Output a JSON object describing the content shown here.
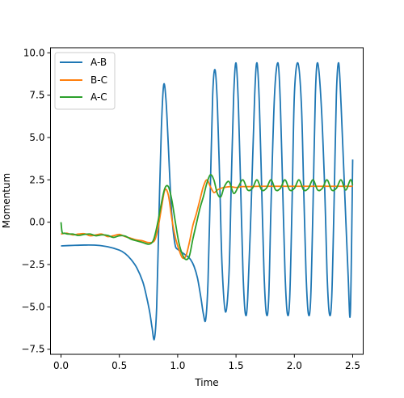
{
  "chart_data": {
    "type": "line",
    "xlabel": "Time",
    "ylabel": "Momentum",
    "xlim": [
      -0.09,
      2.59
    ],
    "ylim": [
      -7.8,
      10.3
    ],
    "xticks": [
      "0.0",
      "0.5",
      "1.0",
      "1.5",
      "2.0",
      "2.5"
    ],
    "xtick_values": [
      0.0,
      0.5,
      1.0,
      1.5,
      2.0,
      2.5
    ],
    "yticks": [
      "10.0",
      "7.5",
      "5.0",
      "2.5",
      "0.0",
      "−2.5",
      "−5.0",
      "−7.5"
    ],
    "ytick_values": [
      10.0,
      7.5,
      5.0,
      2.5,
      0.0,
      -2.5,
      -5.0,
      -7.5
    ],
    "grid": false,
    "legend": "top-left",
    "series": [
      {
        "name": "A-B",
        "color": "#1f77b4",
        "x": [
          0.0,
          0.1,
          0.2,
          0.3,
          0.4,
          0.5,
          0.55,
          0.6,
          0.65,
          0.7,
          0.73,
          0.76,
          0.78,
          0.8,
          0.82,
          0.84,
          0.86,
          0.88,
          0.9,
          0.92,
          0.94,
          0.96,
          0.98,
          1.0,
          1.02,
          1.05,
          1.08,
          1.11,
          1.14,
          1.17,
          1.2,
          1.22,
          1.24,
          1.26,
          1.28,
          1.3,
          1.32,
          1.34,
          1.36,
          1.38,
          1.41,
          1.44,
          1.46,
          1.48,
          1.5,
          1.52,
          1.54,
          1.56,
          1.58,
          1.6,
          1.63,
          1.66,
          1.68,
          1.7,
          1.72,
          1.74,
          1.76,
          1.78,
          1.8,
          1.83,
          1.86,
          1.88,
          1.9,
          1.92,
          1.94,
          1.96,
          1.98,
          2.0,
          2.03,
          2.06,
          2.08,
          2.1,
          2.12,
          2.14,
          2.16,
          2.18,
          2.2,
          2.23,
          2.26,
          2.28,
          2.3,
          2.32,
          2.34,
          2.36,
          2.38,
          2.4,
          2.43,
          2.46,
          2.48,
          2.5
        ],
        "y": [
          -1.4,
          -1.37,
          -1.35,
          -1.36,
          -1.45,
          -1.65,
          -1.85,
          -2.2,
          -2.7,
          -3.5,
          -4.3,
          -5.3,
          -6.2,
          -6.9,
          -5.0,
          0.5,
          5.5,
          8.1,
          7.2,
          4.5,
          1.5,
          -0.4,
          -1.4,
          -1.6,
          -1.7,
          -1.85,
          -2.0,
          -2.2,
          -2.6,
          -3.3,
          -4.5,
          -5.4,
          -5.75,
          -3.5,
          2.0,
          7.5,
          9.0,
          7.0,
          2.5,
          -2.5,
          -5.3,
          -3.0,
          2.5,
          7.5,
          9.4,
          7.0,
          2.0,
          -3.0,
          -5.4,
          -4.5,
          1.0,
          7.5,
          9.4,
          7.0,
          2.0,
          -3.0,
          -5.4,
          -4.5,
          1.0,
          7.5,
          9.4,
          7.0,
          2.0,
          -3.0,
          -5.4,
          -4.5,
          1.0,
          7.5,
          9.4,
          7.0,
          2.0,
          -3.0,
          -5.4,
          -4.5,
          1.0,
          7.5,
          9.4,
          7.0,
          2.0,
          -3.0,
          -5.4,
          -4.5,
          1.0,
          7.5,
          9.4,
          7.0,
          2.0,
          -3.0,
          -5.3,
          3.7
        ]
      },
      {
        "name": "B-C",
        "color": "#ff7f0e",
        "x": [
          0.0,
          0.05,
          0.1,
          0.15,
          0.2,
          0.25,
          0.3,
          0.35,
          0.4,
          0.45,
          0.5,
          0.55,
          0.6,
          0.65,
          0.7,
          0.75,
          0.8,
          0.83,
          0.86,
          0.89,
          0.92,
          0.95,
          0.98,
          1.01,
          1.04,
          1.07,
          1.1,
          1.13,
          1.16,
          1.19,
          1.22,
          1.25,
          1.28,
          1.31,
          1.34,
          1.37,
          1.4,
          1.45,
          1.5,
          1.55,
          1.6,
          1.7,
          1.8,
          1.9,
          2.0,
          2.1,
          2.2,
          2.3,
          2.4,
          2.5
        ],
        "y": [
          -0.7,
          -0.65,
          -0.75,
          -0.7,
          -0.68,
          -0.8,
          -0.75,
          -0.7,
          -0.85,
          -0.8,
          -0.72,
          -0.85,
          -0.95,
          -1.05,
          -1.1,
          -1.2,
          -1.1,
          -0.4,
          0.8,
          1.9,
          1.6,
          0.2,
          -0.9,
          -1.6,
          -2.1,
          -2.0,
          -1.2,
          -0.2,
          0.5,
          1.3,
          2.1,
          2.5,
          2.1,
          1.75,
          1.9,
          2.0,
          2.05,
          2.1,
          2.05,
          2.1,
          2.1,
          2.12,
          2.12,
          2.12,
          2.12,
          2.12,
          2.12,
          2.12,
          2.12,
          2.12
        ]
      },
      {
        "name": "A-C",
        "color": "#2ca02c",
        "x": [
          0.0,
          0.01,
          0.03,
          0.06,
          0.1,
          0.15,
          0.2,
          0.25,
          0.3,
          0.35,
          0.4,
          0.45,
          0.5,
          0.55,
          0.6,
          0.65,
          0.7,
          0.75,
          0.78,
          0.8,
          0.83,
          0.86,
          0.89,
          0.92,
          0.95,
          0.98,
          1.01,
          1.04,
          1.07,
          1.1,
          1.13,
          1.16,
          1.19,
          1.22,
          1.25,
          1.28,
          1.31,
          1.34,
          1.37,
          1.4,
          1.44,
          1.48,
          1.52,
          1.56,
          1.6,
          1.64,
          1.68,
          1.72,
          1.76,
          1.8,
          1.84,
          1.88,
          1.92,
          1.96,
          2.0,
          2.04,
          2.08,
          2.12,
          2.16,
          2.2,
          2.24,
          2.28,
          2.32,
          2.36,
          2.4,
          2.44,
          2.48,
          2.5
        ],
        "y": [
          0.0,
          -0.6,
          -0.65,
          -0.7,
          -0.7,
          -0.78,
          -0.72,
          -0.7,
          -0.8,
          -0.75,
          -0.78,
          -0.9,
          -0.8,
          -0.82,
          -1.0,
          -1.1,
          -1.2,
          -1.3,
          -1.2,
          -0.9,
          0.0,
          1.1,
          2.0,
          2.1,
          1.3,
          0.0,
          -1.2,
          -1.9,
          -2.2,
          -2.0,
          -1.0,
          -0.1,
          0.8,
          1.5,
          2.3,
          2.8,
          2.5,
          1.7,
          1.5,
          2.1,
          2.4,
          1.7,
          2.1,
          2.5,
          1.9,
          2.0,
          2.5,
          1.9,
          2.0,
          2.5,
          1.9,
          2.0,
          2.5,
          1.9,
          2.0,
          2.5,
          1.9,
          2.0,
          2.5,
          1.9,
          2.0,
          2.5,
          1.9,
          2.0,
          2.5,
          1.9,
          2.5,
          2.2
        ]
      }
    ]
  }
}
